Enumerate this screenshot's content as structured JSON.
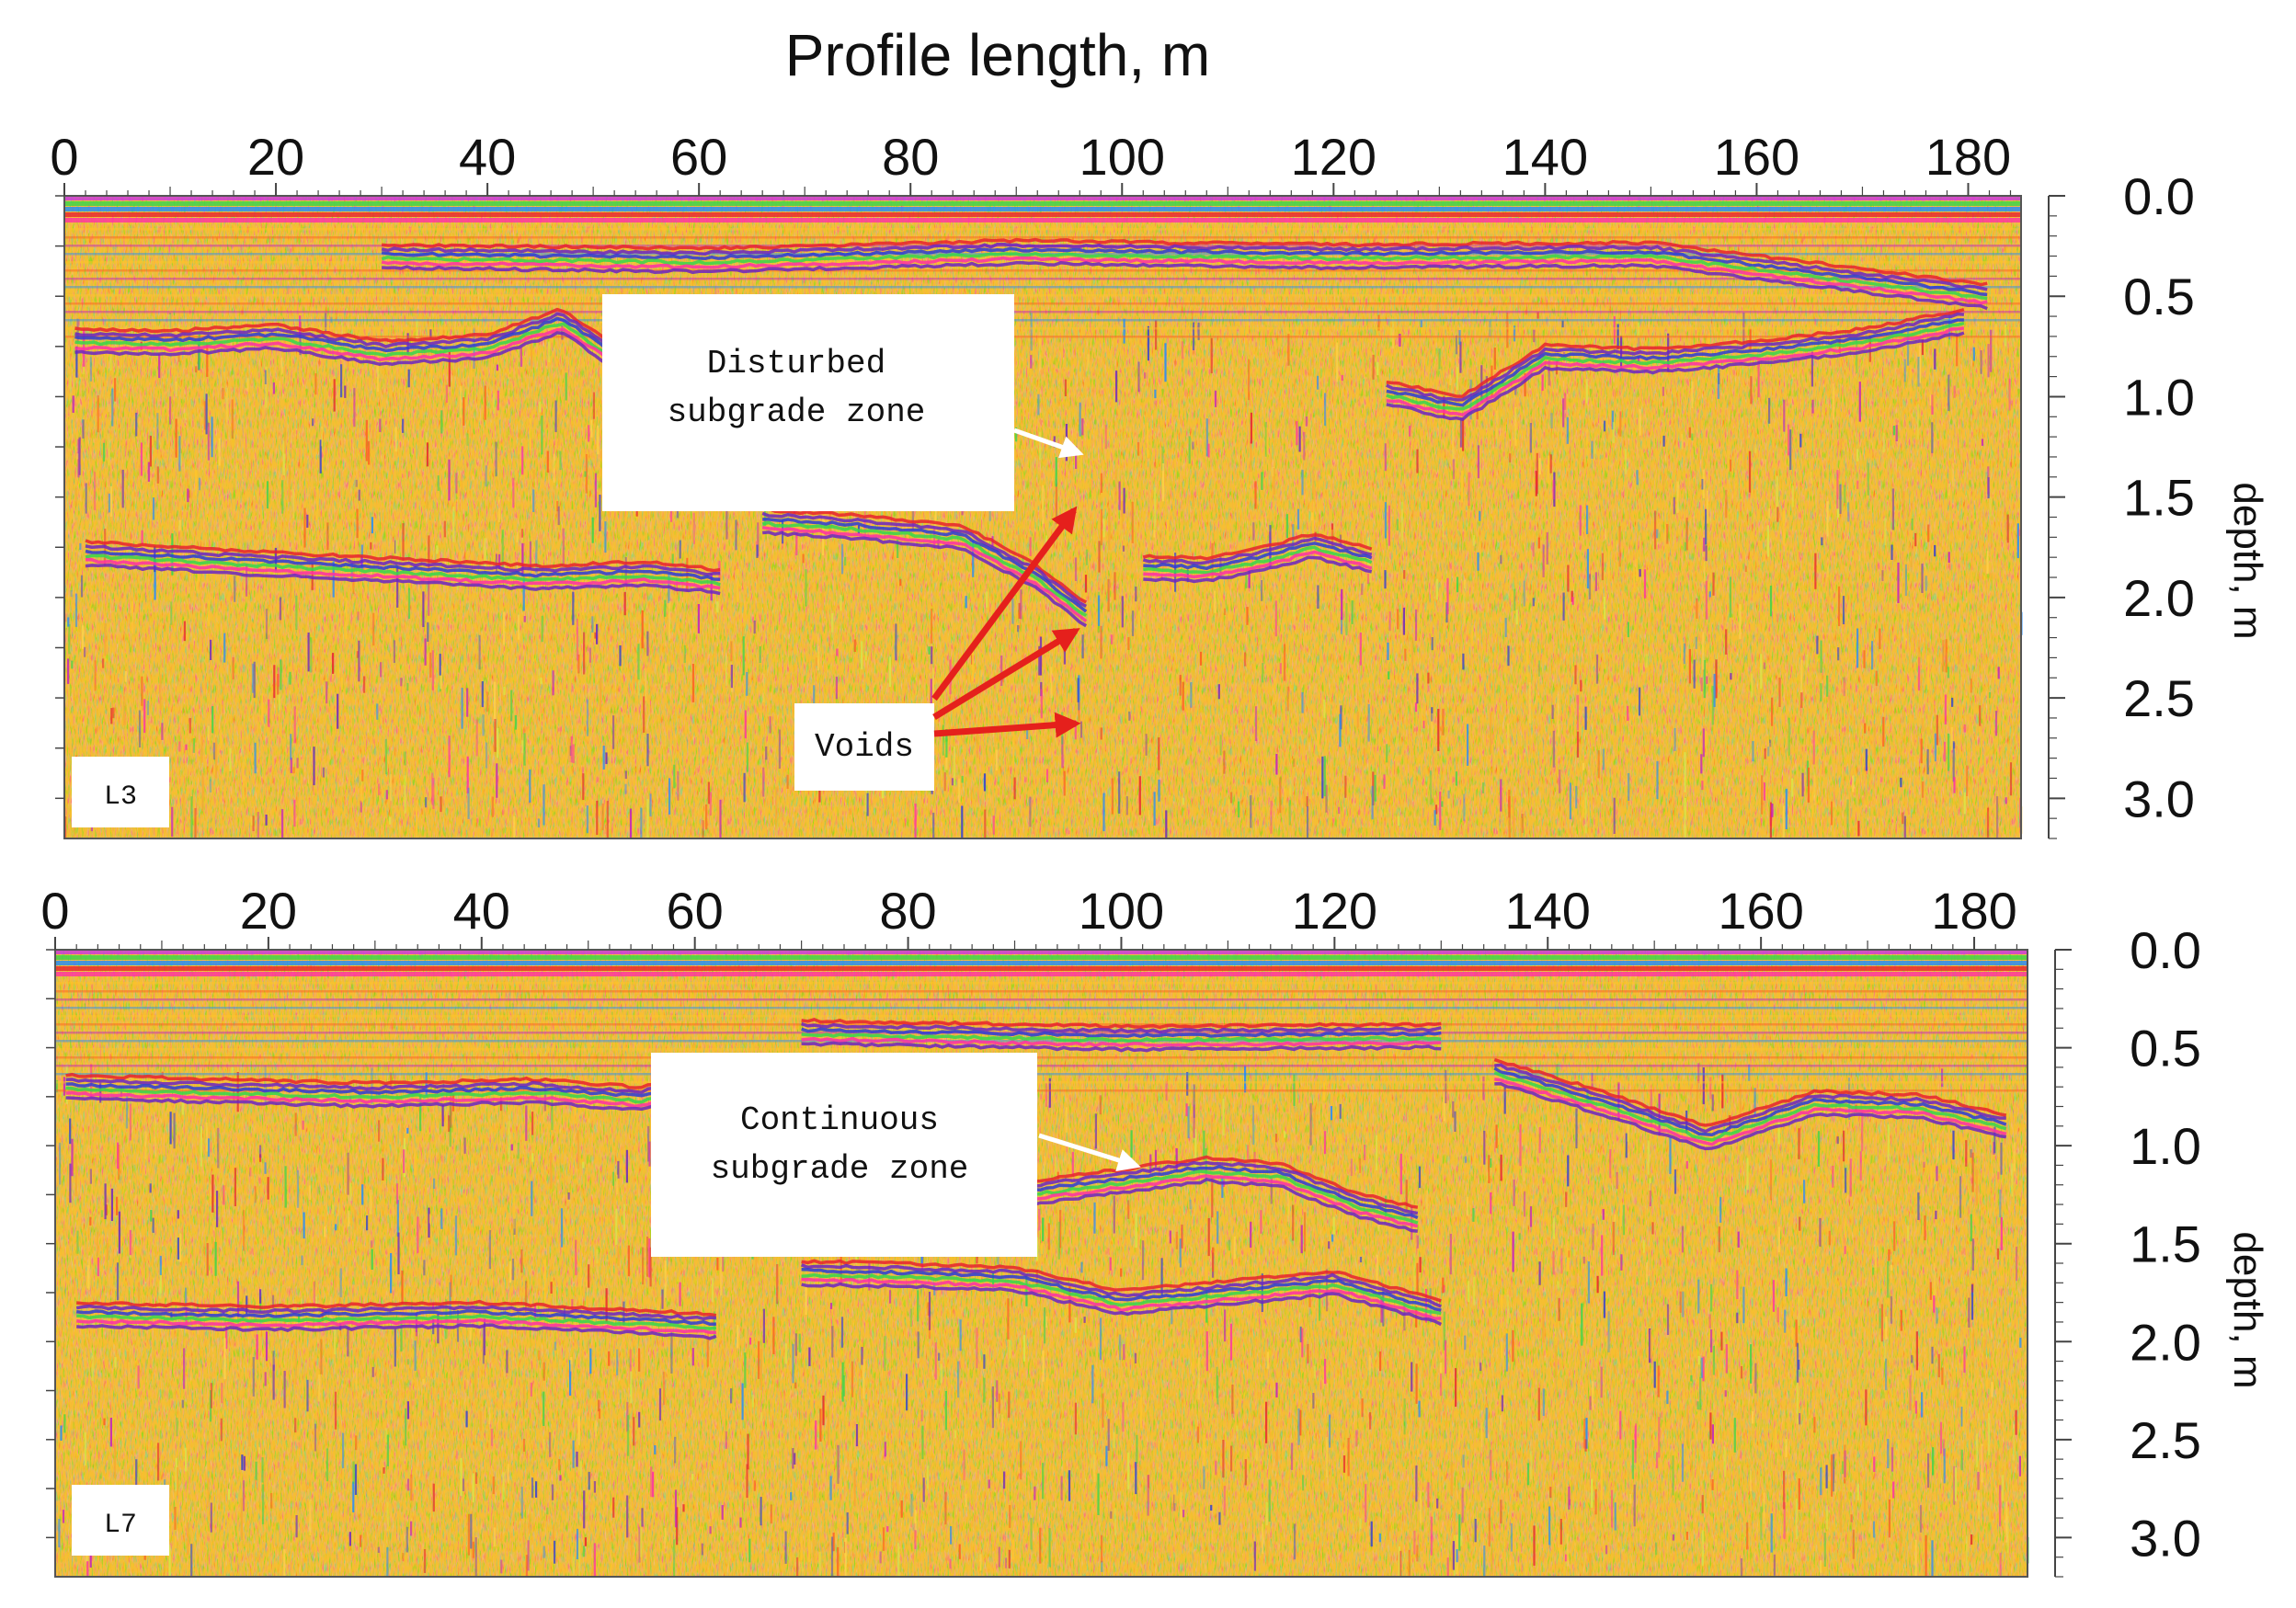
{
  "figure": {
    "title": "Profile length, m"
  },
  "colors": {
    "background_fill": "#F6BE32",
    "palette": [
      "#FFC629",
      "#F7A830",
      "#FFD24A",
      "#FF5A1E",
      "#E8222E",
      "#FF2FA6",
      "#C21CC4",
      "#6B24C2",
      "#2B3BD6",
      "#1F8BFF",
      "#36D64C",
      "#D8E84A",
      "#FFFFFF"
    ],
    "arrow_white": "#FFFFFF",
    "arrow_red": "#E5201C",
    "surface_band": [
      "#C933E6",
      "#36D64C",
      "#1F8BFF",
      "#E8222E",
      "#FF2FA6"
    ]
  },
  "chart_data": [
    {
      "type": "heatmap",
      "panel_label": "L3",
      "xlim": [
        0,
        185
      ],
      "ylim": [
        0,
        3.2
      ],
      "y_inverted": true,
      "x_ticks": [
        0,
        20,
        40,
        60,
        80,
        100,
        120,
        140,
        160,
        180
      ],
      "y_ticks": [
        "0.0",
        "0.5",
        "1.0",
        "1.5",
        "2.0",
        "2.5",
        "3.0"
      ],
      "ylabel": "depth, m",
      "reflectors": [
        {
          "x": [
            1,
            10,
            20,
            30,
            40,
            47,
            52
          ],
          "y": [
            0.72,
            0.73,
            0.7,
            0.78,
            0.75,
            0.62,
            0.8
          ]
        },
        {
          "x": [
            2,
            15,
            30,
            45,
            55,
            62
          ],
          "y": [
            1.78,
            1.82,
            1.86,
            1.9,
            1.88,
            1.92
          ]
        },
        {
          "x": [
            66,
            75,
            85,
            92,
            97
          ],
          "y": [
            1.62,
            1.65,
            1.7,
            1.9,
            2.1
          ]
        },
        {
          "x": [
            102,
            108,
            114,
            118,
            124
          ],
          "y": [
            1.85,
            1.86,
            1.8,
            1.74,
            1.82
          ]
        },
        {
          "x": [
            125,
            132,
            140,
            150,
            160,
            170,
            180
          ],
          "y": [
            0.98,
            1.06,
            0.8,
            0.82,
            0.78,
            0.72,
            0.62
          ]
        },
        {
          "x": [
            30,
            60,
            90,
            120,
            150,
            182
          ],
          "y": [
            0.3,
            0.32,
            0.28,
            0.3,
            0.29,
            0.5
          ]
        }
      ],
      "annotations": [
        {
          "text": [
            "Disturbed",
            "subgrade zone"
          ],
          "arrow_color": "white",
          "target": [
            95,
            1.3
          ]
        },
        {
          "text": [
            "Voids"
          ],
          "arrow_color": "red",
          "targets": [
            [
              95,
              1.48
            ],
            [
              95,
              2.12
            ],
            [
              95,
              2.6
            ]
          ]
        }
      ]
    },
    {
      "type": "heatmap",
      "panel_label": "L7",
      "xlim": [
        0,
        185
      ],
      "ylim": [
        0,
        3.2
      ],
      "y_inverted": true,
      "x_ticks": [
        0,
        20,
        40,
        60,
        80,
        100,
        120,
        140,
        160,
        180
      ],
      "y_ticks": [
        "0.0",
        "0.5",
        "1.0",
        "1.5",
        "2.0",
        "2.5",
        "3.0"
      ],
      "ylabel": "depth, m",
      "reflectors": [
        {
          "x": [
            1,
            15,
            30,
            45,
            55,
            62,
            68
          ],
          "y": [
            0.7,
            0.72,
            0.74,
            0.72,
            0.76,
            0.66,
            0.62
          ]
        },
        {
          "x": [
            2,
            20,
            40,
            55,
            62
          ],
          "y": [
            1.86,
            1.88,
            1.86,
            1.9,
            1.92
          ]
        },
        {
          "x": [
            70,
            80,
            90,
            100,
            110,
            120,
            130
          ],
          "y": [
            1.65,
            1.66,
            1.68,
            1.8,
            1.75,
            1.7,
            1.85
          ]
        },
        {
          "x": [
            90,
            100,
            108,
            115,
            122,
            128
          ],
          "y": [
            1.25,
            1.18,
            1.12,
            1.15,
            1.3,
            1.38
          ]
        },
        {
          "x": [
            135,
            145,
            155,
            165,
            175,
            183
          ],
          "y": [
            0.62,
            0.78,
            0.96,
            0.78,
            0.8,
            0.9
          ]
        },
        {
          "x": [
            70,
            100,
            130
          ],
          "y": [
            0.42,
            0.45,
            0.44
          ]
        }
      ],
      "annotations": [
        {
          "text": [
            "Continuous",
            "subgrade zone"
          ],
          "arrow_color": "white",
          "target": [
            101,
            1.08
          ]
        }
      ]
    }
  ]
}
